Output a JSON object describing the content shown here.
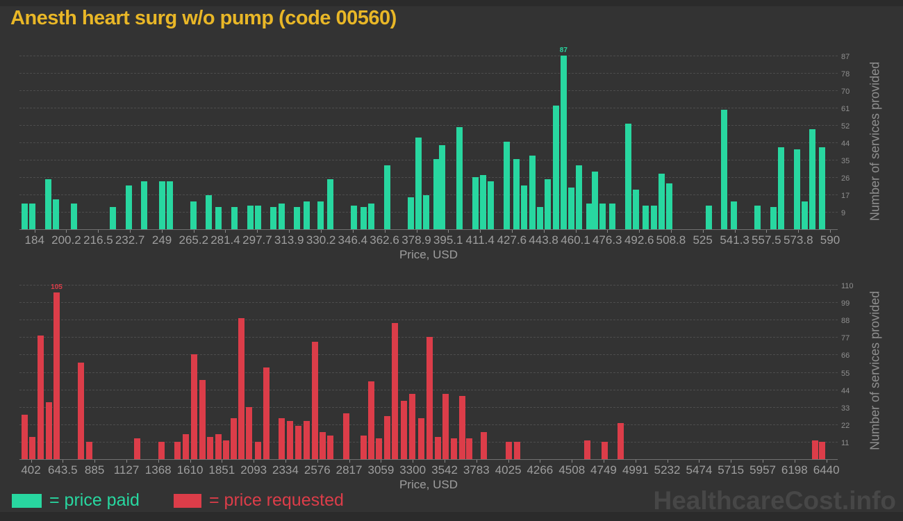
{
  "title": "Anesth heart surg w/o pump (code 00560)",
  "watermark": "HealthcareCost.info",
  "legend": [
    {
      "label": "= price paid",
      "color": "#28d7a0"
    },
    {
      "label": "= price requested",
      "color": "#dc3d49"
    }
  ],
  "colors": {
    "background": "#333333",
    "frame": "#2b2b2b",
    "title": "#e9b727",
    "grid": "#4d4d4d",
    "axis": "#717171",
    "tick_text": "#9e9e9e",
    "ytick_text": "#8f8f8f",
    "watermark": "#474747",
    "price_paid": "#28d7a0",
    "price_requested": "#dc3d49"
  },
  "chart_data": [
    {
      "type": "bar",
      "name": "price-paid-histogram",
      "xlabel": "Price, USD",
      "ylabel": "Number of services provided",
      "bar_color": "#28d7a0",
      "legend_entry": "= price paid",
      "grid": true,
      "xlim": [
        176.3,
        593.9
      ],
      "ylim": [
        0,
        89
      ],
      "peak_label": "87",
      "x_ticks": [
        "184",
        "200.2",
        "216.5",
        "232.7",
        "249",
        "265.2",
        "281.4",
        "297.7",
        "313.9",
        "330.2",
        "346.4",
        "362.6",
        "378.9",
        "395.1",
        "411.4",
        "427.6",
        "443.8",
        "460.1",
        "476.3",
        "492.6",
        "508.8",
        "525",
        "541.3",
        "557.5",
        "573.8",
        "590"
      ],
      "y_ticks": [
        "9",
        "17",
        "26",
        "35",
        "44",
        "52",
        "61",
        "70",
        "78",
        "87"
      ],
      "bars": [
        [
          179,
          13
        ],
        [
          183,
          13
        ],
        [
          191,
          25
        ],
        [
          195,
          15
        ],
        [
          204,
          13
        ],
        [
          224,
          11
        ],
        [
          232,
          22
        ],
        [
          240,
          24
        ],
        [
          249,
          24
        ],
        [
          253,
          24
        ],
        [
          265,
          14
        ],
        [
          273,
          17
        ],
        [
          278,
          11
        ],
        [
          286,
          11
        ],
        [
          294,
          12
        ],
        [
          298,
          12
        ],
        [
          306,
          11
        ],
        [
          310,
          13
        ],
        [
          318,
          11
        ],
        [
          323,
          14
        ],
        [
          330,
          14
        ],
        [
          335,
          25
        ],
        [
          347,
          12
        ],
        [
          352,
          11
        ],
        [
          356,
          13
        ],
        [
          364,
          32
        ],
        [
          376,
          16
        ],
        [
          380,
          46
        ],
        [
          384,
          17
        ],
        [
          389,
          35
        ],
        [
          392,
          42
        ],
        [
          401,
          51
        ],
        [
          409,
          26
        ],
        [
          413,
          27
        ],
        [
          417,
          24
        ],
        [
          425,
          44
        ],
        [
          430,
          35
        ],
        [
          434,
          22
        ],
        [
          438,
          37
        ],
        [
          442,
          11
        ],
        [
          446,
          25
        ],
        [
          450,
          62
        ],
        [
          454,
          87
        ],
        [
          458,
          21
        ],
        [
          462,
          32
        ],
        [
          467,
          13
        ],
        [
          470,
          29
        ],
        [
          474,
          13
        ],
        [
          479,
          13
        ],
        [
          487,
          53
        ],
        [
          491,
          20
        ],
        [
          496,
          12
        ],
        [
          500,
          12
        ],
        [
          504,
          28
        ],
        [
          508,
          23
        ],
        [
          528,
          12
        ],
        [
          536,
          60
        ],
        [
          541,
          14
        ],
        [
          553,
          12
        ],
        [
          561,
          11
        ],
        [
          565,
          41
        ],
        [
          573,
          40
        ],
        [
          577,
          14
        ],
        [
          581,
          50
        ],
        [
          586,
          41
        ]
      ]
    },
    {
      "type": "bar",
      "name": "price-requested-histogram",
      "xlabel": "Price, USD",
      "ylabel": "Number of services provided",
      "bar_color": "#dc3d49",
      "legend_entry": "= price requested",
      "grid": true,
      "xlim": [
        315,
        6526
      ],
      "ylim": [
        0,
        113
      ],
      "peak_label": "105",
      "x_ticks": [
        "402",
        "643.5",
        "885",
        "1127",
        "1368",
        "1610",
        "1851",
        "2093",
        "2334",
        "2576",
        "2817",
        "3059",
        "3300",
        "3542",
        "3783",
        "4025",
        "4266",
        "4508",
        "4749",
        "4991",
        "5232",
        "5474",
        "5715",
        "5957",
        "6198",
        "6440"
      ],
      "y_ticks": [
        "11",
        "22",
        "33",
        "44",
        "55",
        "66",
        "77",
        "88",
        "99",
        "110"
      ],
      "bars": [
        [
          355,
          28
        ],
        [
          415,
          14
        ],
        [
          476,
          78
        ],
        [
          539,
          36
        ],
        [
          597,
          105
        ],
        [
          782,
          61
        ],
        [
          845,
          11
        ],
        [
          1209,
          13
        ],
        [
          1393,
          11
        ],
        [
          1517,
          11
        ],
        [
          1578,
          16
        ],
        [
          1641,
          66
        ],
        [
          1702,
          50
        ],
        [
          1762,
          14
        ],
        [
          1826,
          16
        ],
        [
          1886,
          12
        ],
        [
          1939,
          26
        ],
        [
          2002,
          89
        ],
        [
          2060,
          33
        ],
        [
          2124,
          11
        ],
        [
          2187,
          58
        ],
        [
          2308,
          26
        ],
        [
          2371,
          24
        ],
        [
          2434,
          21
        ],
        [
          2493,
          24
        ],
        [
          2556,
          74
        ],
        [
          2614,
          17
        ],
        [
          2677,
          15
        ],
        [
          2798,
          29
        ],
        [
          2925,
          15
        ],
        [
          2983,
          49
        ],
        [
          3046,
          13
        ],
        [
          3109,
          27
        ],
        [
          3167,
          86
        ],
        [
          3231,
          37
        ],
        [
          3294,
          41
        ],
        [
          3365,
          26
        ],
        [
          3429,
          77
        ],
        [
          3492,
          14
        ],
        [
          3550,
          41
        ],
        [
          3613,
          13
        ],
        [
          3676,
          40
        ],
        [
          3729,
          13
        ],
        [
          3840,
          17
        ],
        [
          4030,
          11
        ],
        [
          4093,
          11
        ],
        [
          4626,
          12
        ],
        [
          4758,
          11
        ],
        [
          4879,
          23
        ],
        [
          6353,
          12
        ],
        [
          6408,
          11
        ]
      ]
    }
  ]
}
